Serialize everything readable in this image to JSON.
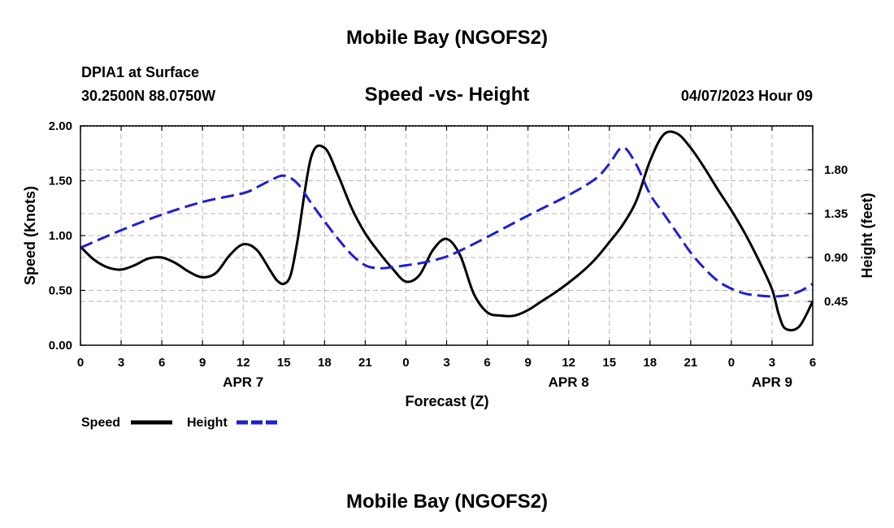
{
  "header": {
    "title": "Mobile Bay (NGOFS2)",
    "station": "DPIA1 at Surface",
    "coords": "30.2500N  88.0750W",
    "chart_title": "Speed -vs- Height",
    "date": "04/07/2023 Hour 09"
  },
  "footer": {
    "title": "Mobile Bay (NGOFS2)"
  },
  "legend": {
    "speed_label": "Speed",
    "height_label": "Height"
  },
  "colors": {
    "speed": "#000000",
    "height": "#1f1fd0",
    "grid": "#b4b4b4"
  },
  "chart_data": {
    "type": "line",
    "title": "Speed -vs- Height",
    "xlabel": "Forecast (Z)",
    "ylabel": "Speed (Knots)",
    "y2label": "Height (feet)",
    "x_range_hours": [
      0,
      54
    ],
    "x_ticks": [
      {
        "h": 0,
        "label": "0"
      },
      {
        "h": 3,
        "label": "3"
      },
      {
        "h": 6,
        "label": "6"
      },
      {
        "h": 9,
        "label": "9"
      },
      {
        "h": 12,
        "label": "12"
      },
      {
        "h": 15,
        "label": "15"
      },
      {
        "h": 18,
        "label": "18"
      },
      {
        "h": 21,
        "label": "21"
      },
      {
        "h": 24,
        "label": "0"
      },
      {
        "h": 27,
        "label": "3"
      },
      {
        "h": 30,
        "label": "6"
      },
      {
        "h": 33,
        "label": "9"
      },
      {
        "h": 36,
        "label": "12"
      },
      {
        "h": 39,
        "label": "15"
      },
      {
        "h": 42,
        "label": "18"
      },
      {
        "h": 45,
        "label": "21"
      },
      {
        "h": 48,
        "label": "0"
      },
      {
        "h": 51,
        "label": "3"
      },
      {
        "h": 54,
        "label": "6"
      }
    ],
    "date_labels": [
      {
        "h": 12,
        "label": "APR 7"
      },
      {
        "h": 36,
        "label": "APR 8"
      },
      {
        "h": 51,
        "label": "APR 9"
      }
    ],
    "y_left": {
      "range": [
        0,
        2.0
      ],
      "ticks": [
        "0.00",
        "0.50",
        "1.00",
        "1.50",
        "2.00"
      ],
      "tick_values": [
        0,
        0.5,
        1.0,
        1.5,
        2.0
      ]
    },
    "y_right": {
      "ticks": [
        "0.45",
        "0.90",
        "1.35",
        "1.80"
      ],
      "tick_values": [
        0.45,
        0.9,
        1.35,
        1.8
      ],
      "range": [
        0.0,
        2.25
      ]
    },
    "series": [
      {
        "name": "Speed",
        "axis": "left",
        "style": "solid",
        "x": [
          0,
          1,
          2,
          3,
          4,
          5,
          6,
          7,
          8,
          9,
          10,
          11,
          12,
          13,
          14,
          14.5,
          15,
          15.5,
          16,
          17,
          18,
          19,
          20,
          21,
          22,
          23,
          24,
          25,
          26,
          27,
          28,
          29,
          30,
          31,
          32,
          33,
          34,
          35,
          36,
          37,
          38,
          39,
          40,
          41,
          42,
          43,
          44,
          45,
          46,
          47,
          48,
          49,
          50,
          51,
          51.5,
          52,
          53,
          54
        ],
        "values": [
          0.9,
          0.78,
          0.71,
          0.69,
          0.73,
          0.79,
          0.8,
          0.75,
          0.67,
          0.62,
          0.66,
          0.82,
          0.92,
          0.87,
          0.68,
          0.59,
          0.56,
          0.64,
          0.95,
          1.71,
          1.8,
          1.55,
          1.25,
          1.02,
          0.85,
          0.7,
          0.58,
          0.64,
          0.87,
          0.97,
          0.82,
          0.47,
          0.3,
          0.27,
          0.27,
          0.32,
          0.4,
          0.48,
          0.57,
          0.67,
          0.79,
          0.94,
          1.1,
          1.32,
          1.68,
          1.92,
          1.93,
          1.8,
          1.62,
          1.42,
          1.23,
          1.02,
          0.78,
          0.51,
          0.28,
          0.15,
          0.17,
          0.4
        ]
      },
      {
        "name": "Height",
        "axis": "right",
        "style": "dashed",
        "x": [
          0,
          3,
          6,
          9,
          12,
          13,
          14,
          15,
          16,
          17,
          18,
          19,
          20,
          21,
          22,
          23,
          24,
          25,
          26,
          27,
          28,
          30,
          33,
          36,
          38,
          39,
          40,
          41,
          42,
          43,
          44,
          45,
          46,
          47,
          48,
          49,
          50,
          51,
          52,
          53,
          54
        ],
        "values": [
          1.0,
          1.18,
          1.34,
          1.47,
          1.56,
          1.62,
          1.69,
          1.74,
          1.66,
          1.46,
          1.27,
          1.09,
          0.93,
          0.82,
          0.79,
          0.8,
          0.82,
          0.84,
          0.87,
          0.91,
          0.97,
          1.11,
          1.33,
          1.54,
          1.71,
          1.86,
          2.03,
          1.85,
          1.55,
          1.35,
          1.15,
          0.95,
          0.79,
          0.66,
          0.58,
          0.53,
          0.51,
          0.5,
          0.51,
          0.55,
          0.63
        ]
      }
    ]
  }
}
